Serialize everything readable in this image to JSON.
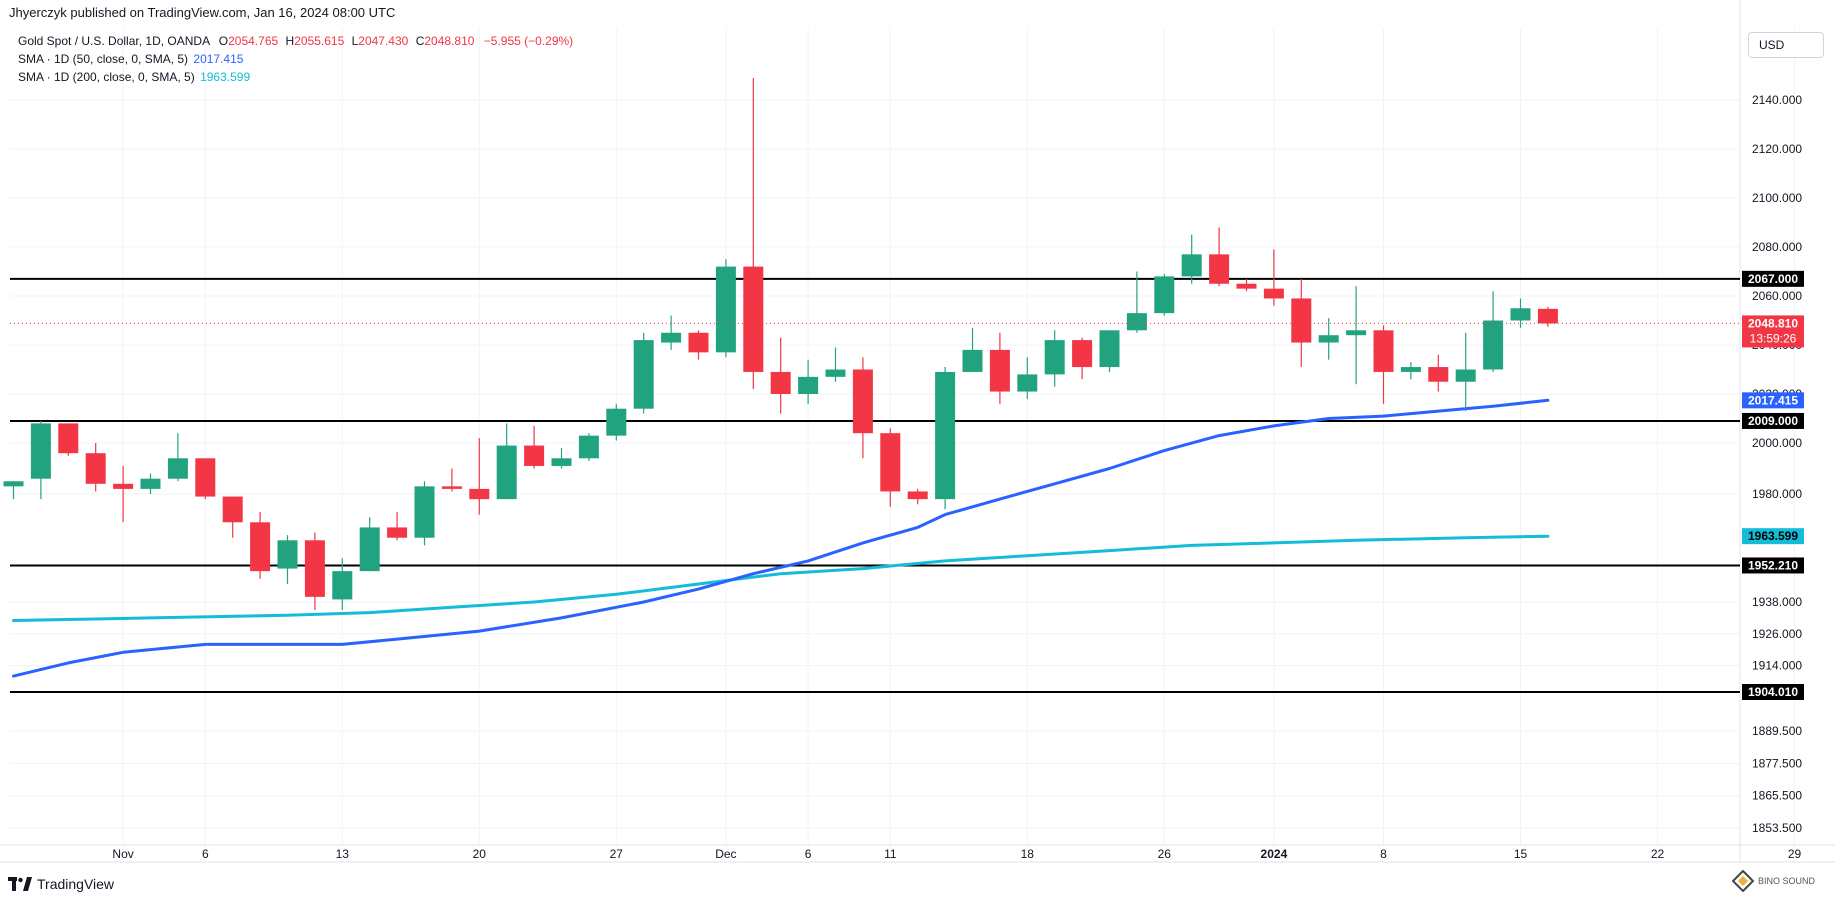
{
  "header": {
    "publisher_text": "Jhyerczyk published on TradingView.com, Jan 16, 2024 08:00 UTC"
  },
  "legend": {
    "symbol": "Gold Spot / U.S. Dollar, 1D, OANDA",
    "open_label": "O",
    "open": "2054.765",
    "high_label": "H",
    "high": "2055.615",
    "low_label": "L",
    "low": "2047.430",
    "close_label": "C",
    "close": "2048.810",
    "change": "−5.955 (−0.29%)",
    "sma50_label": "SMA · 1D (50, close, 0, SMA, 5)",
    "sma50_value": "2017.415",
    "sma200_label": "SMA · 1D (200, close, 0, SMA, 5)",
    "sma200_value": "1963.599"
  },
  "currency": "USD",
  "footer": {
    "brand": "TradingView"
  },
  "watermark": "BINO SOUND",
  "colors": {
    "up": "#22a37f",
    "down": "#f23645",
    "sma50": "#2962ff",
    "sma200": "#13bcd8",
    "level": "#000000",
    "grid": "#f0f3fa",
    "text": "#131722",
    "red_text": "#f23645",
    "blue_text": "#2962ff",
    "teal_text": "#13bcd8"
  },
  "chart_data": {
    "type": "candlestick",
    "y_ticks": [
      "2140.000",
      "2120.000",
      "2100.000",
      "2080.000",
      "2060.000",
      "2040.000",
      "2020.000",
      "2000.000",
      "1980.000",
      "1952.210",
      "1938.000",
      "1926.000",
      "1914.000",
      "1904.010",
      "1889.500",
      "1877.500",
      "1865.500",
      "1853.500"
    ],
    "x_ticks": [
      {
        "label": "Nov",
        "index": 4
      },
      {
        "label": "6",
        "index": 7
      },
      {
        "label": "13",
        "index": 12
      },
      {
        "label": "20",
        "index": 17
      },
      {
        "label": "27",
        "index": 22
      },
      {
        "label": "Dec",
        "index": 26
      },
      {
        "label": "6",
        "index": 29
      },
      {
        "label": "11",
        "index": 32
      },
      {
        "label": "18",
        "index": 37
      },
      {
        "label": "26",
        "index": 42
      },
      {
        "label": "2024",
        "index": 46
      },
      {
        "label": "8",
        "index": 50
      },
      {
        "label": "15",
        "index": 55
      },
      {
        "label": "22",
        "index": 60
      },
      {
        "label": "29",
        "index": 65
      }
    ],
    "candles": [
      {
        "o": 1983,
        "h": 1985,
        "l": 1978,
        "c": 1985
      },
      {
        "o": 1986,
        "h": 2009,
        "l": 1978,
        "c": 2008
      },
      {
        "o": 2008,
        "h": 2008,
        "l": 1995,
        "c": 1996
      },
      {
        "o": 1996,
        "h": 2000,
        "l": 1981,
        "c": 1984
      },
      {
        "o": 1984,
        "h": 1991,
        "l": 1969,
        "c": 1982
      },
      {
        "o": 1982,
        "h": 1988,
        "l": 1980,
        "c": 1986
      },
      {
        "o": 1986,
        "h": 2004,
        "l": 1985,
        "c": 1994
      },
      {
        "o": 1994,
        "h": 1994,
        "l": 1978,
        "c": 1979
      },
      {
        "o": 1979,
        "h": 1979,
        "l": 1963,
        "c": 1969
      },
      {
        "o": 1969,
        "h": 1973,
        "l": 1947,
        "c": 1950
      },
      {
        "o": 1951,
        "h": 1964,
        "l": 1945,
        "c": 1962
      },
      {
        "o": 1962,
        "h": 1965,
        "l": 1935,
        "c": 1940
      },
      {
        "o": 1939,
        "h": 1955,
        "l": 1935,
        "c": 1950
      },
      {
        "o": 1950,
        "h": 1971,
        "l": 1950,
        "c": 1967
      },
      {
        "o": 1967,
        "h": 1973,
        "l": 1962,
        "c": 1963
      },
      {
        "o": 1963,
        "h": 1985,
        "l": 1960,
        "c": 1983
      },
      {
        "o": 1983,
        "h": 1990,
        "l": 1981,
        "c": 1982
      },
      {
        "o": 1982,
        "h": 2002,
        "l": 1972,
        "c": 1978
      },
      {
        "o": 1978,
        "h": 2008,
        "l": 1978,
        "c": 1999
      },
      {
        "o": 1999,
        "h": 2007,
        "l": 1990,
        "c": 1991
      },
      {
        "o": 1991,
        "h": 1998,
        "l": 1990,
        "c": 1994
      },
      {
        "o": 1994,
        "h": 2004,
        "l": 1993,
        "c": 2003
      },
      {
        "o": 2003,
        "h": 2016,
        "l": 2001,
        "c": 2014
      },
      {
        "o": 2014,
        "h": 2045,
        "l": 2012,
        "c": 2042
      },
      {
        "o": 2041,
        "h": 2052,
        "l": 2038,
        "c": 2045
      },
      {
        "o": 2045,
        "h": 2046,
        "l": 2034,
        "c": 2037
      },
      {
        "o": 2037,
        "h": 2075,
        "l": 2035,
        "c": 2072
      },
      {
        "o": 2072,
        "h": 2149,
        "l": 2022,
        "c": 2029
      },
      {
        "o": 2029,
        "h": 2043,
        "l": 2012,
        "c": 2020
      },
      {
        "o": 2020,
        "h": 2034,
        "l": 2016,
        "c": 2027
      },
      {
        "o": 2027,
        "h": 2039,
        "l": 2025,
        "c": 2030
      },
      {
        "o": 2030,
        "h": 2035,
        "l": 1994,
        "c": 2004
      },
      {
        "o": 2004,
        "h": 2006,
        "l": 1975,
        "c": 1981
      },
      {
        "o": 1981,
        "h": 1982,
        "l": 1976,
        "c": 1978
      },
      {
        "o": 1978,
        "h": 2031,
        "l": 1974,
        "c": 2029
      },
      {
        "o": 2029,
        "h": 2047,
        "l": 2029,
        "c": 2038
      },
      {
        "o": 2038,
        "h": 2045,
        "l": 2016,
        "c": 2021
      },
      {
        "o": 2021,
        "h": 2035,
        "l": 2018,
        "c": 2028
      },
      {
        "o": 2028,
        "h": 2046,
        "l": 2023,
        "c": 2042
      },
      {
        "o": 2042,
        "h": 2043,
        "l": 2026,
        "c": 2031
      },
      {
        "o": 2031,
        "h": 2045,
        "l": 2029,
        "c": 2046
      },
      {
        "o": 2046,
        "h": 2070,
        "l": 2045,
        "c": 2053
      },
      {
        "o": 2053,
        "h": 2069,
        "l": 2052,
        "c": 2068
      },
      {
        "o": 2068,
        "h": 2085,
        "l": 2065,
        "c": 2077
      },
      {
        "o": 2077,
        "h": 2088,
        "l": 2064,
        "c": 2065
      },
      {
        "o": 2065,
        "h": 2067,
        "l": 2062,
        "c": 2063
      },
      {
        "o": 2063,
        "h": 2079,
        "l": 2056,
        "c": 2059
      },
      {
        "o": 2059,
        "h": 2067,
        "l": 2031,
        "c": 2041
      },
      {
        "o": 2041,
        "h": 2051,
        "l": 2034,
        "c": 2044
      },
      {
        "o": 2044,
        "h": 2064,
        "l": 2024,
        "c": 2046
      },
      {
        "o": 2046,
        "h": 2048,
        "l": 2016,
        "c": 2029
      },
      {
        "o": 2029,
        "h": 2033,
        "l": 2026,
        "c": 2031
      },
      {
        "o": 2031,
        "h": 2036,
        "l": 2021,
        "c": 2025
      },
      {
        "o": 2025,
        "h": 2045,
        "l": 2013,
        "c": 2030
      },
      {
        "o": 2030,
        "h": 2062,
        "l": 2029,
        "c": 2050
      },
      {
        "o": 2050,
        "h": 2059,
        "l": 2047,
        "c": 2055
      },
      {
        "o": 2054.765,
        "h": 2055.615,
        "l": 2047.43,
        "c": 2048.81
      }
    ],
    "sma50": [
      [
        0,
        1910
      ],
      [
        2,
        1915
      ],
      [
        4,
        1919
      ],
      [
        6,
        1921
      ],
      [
        7,
        1922
      ],
      [
        9,
        1922
      ],
      [
        12,
        1922
      ],
      [
        14,
        1924
      ],
      [
        17,
        1927
      ],
      [
        20,
        1932
      ],
      [
        23,
        1938
      ],
      [
        25,
        1943
      ],
      [
        27,
        1949
      ],
      [
        29,
        1954
      ],
      [
        31,
        1961
      ],
      [
        33,
        1967
      ],
      [
        34,
        1972
      ],
      [
        36,
        1978
      ],
      [
        38,
        1984
      ],
      [
        40,
        1990
      ],
      [
        42,
        1997
      ],
      [
        44,
        2003
      ],
      [
        46,
        2007
      ],
      [
        48,
        2010
      ],
      [
        50,
        2011
      ],
      [
        52,
        2013
      ],
      [
        54,
        2015
      ],
      [
        56,
        2017.415
      ]
    ],
    "sma200": [
      [
        0,
        1931
      ],
      [
        5,
        1932
      ],
      [
        10,
        1933
      ],
      [
        13,
        1934
      ],
      [
        16,
        1936
      ],
      [
        19,
        1938
      ],
      [
        22,
        1941
      ],
      [
        25,
        1945
      ],
      [
        28,
        1949
      ],
      [
        31,
        1951
      ],
      [
        34,
        1954
      ],
      [
        37,
        1956
      ],
      [
        40,
        1958
      ],
      [
        43,
        1960
      ],
      [
        46,
        1961
      ],
      [
        49,
        1962
      ],
      [
        53,
        1963
      ],
      [
        56,
        1963.599
      ]
    ],
    "levels": [
      {
        "value": "2067.000"
      },
      {
        "value": "2009.000"
      },
      {
        "value": "1952.210"
      },
      {
        "value": "1904.010"
      }
    ],
    "last_price": {
      "value": "2048.810",
      "countdown": "13:59:26"
    },
    "sma50_tag": "2017.415",
    "sma200_tag": "1963.599"
  }
}
